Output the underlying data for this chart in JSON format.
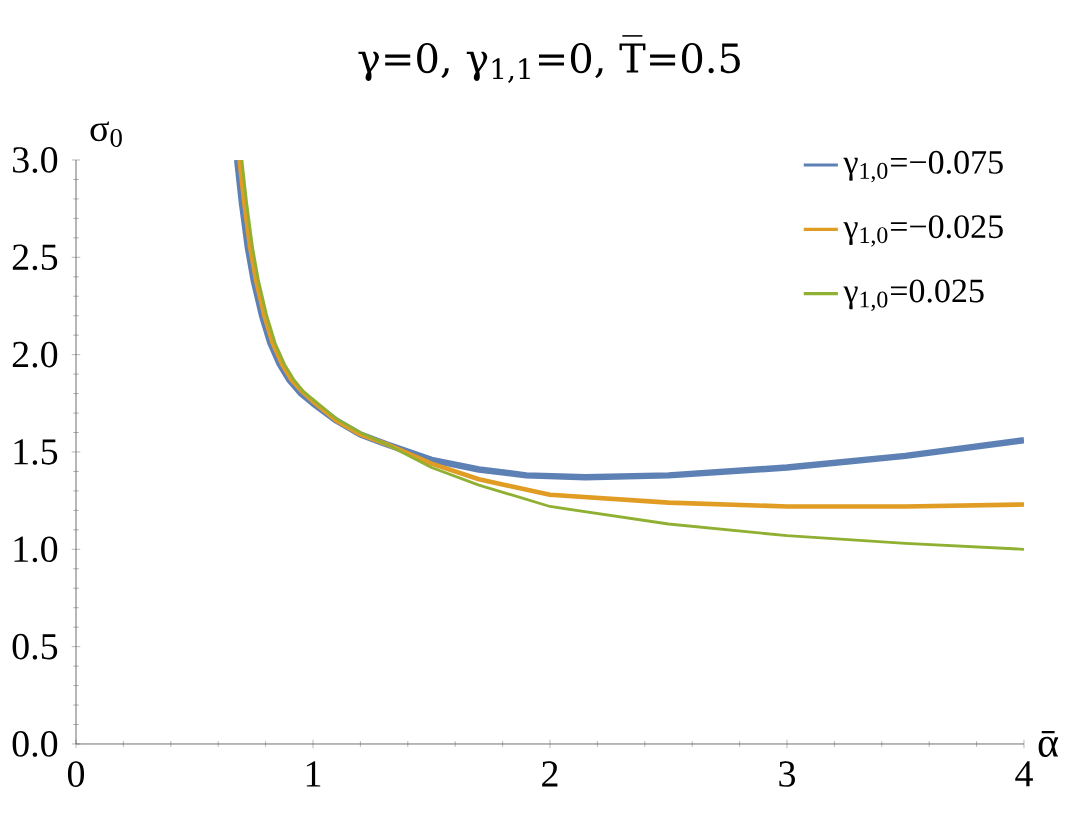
{
  "chart_data": {
    "type": "line",
    "title": "γ=0, γ$_{1,1}$=0, T̅=0.5",
    "xlabel": "ᾱ",
    "ylabel": "σ$_{0}$",
    "xlim": [
      0,
      4
    ],
    "ylim": [
      0,
      3.0
    ],
    "xticks": [
      0,
      1,
      2,
      3,
      4
    ],
    "yticks": [
      {
        "value": 0,
        "label": "0.0"
      },
      {
        "value": 0.5,
        "label": "0.5"
      },
      {
        "value": 1,
        "label": "1.0"
      },
      {
        "value": 1.5,
        "label": "1.5"
      },
      {
        "value": 2,
        "label": "2.0"
      },
      {
        "value": 2.5,
        "label": "2.5"
      },
      {
        "value": 3,
        "label": "3.0"
      }
    ],
    "legend": "top right",
    "marker": "none",
    "line_style": "solid",
    "series": [
      {
        "name": "γ$_{1,0}$=−0.075",
        "color": "#5e81b5",
        "x": [
          0.68,
          0.7,
          0.725,
          0.75,
          0.785,
          0.82,
          0.86,
          0.9,
          0.95,
          1.0,
          1.1,
          1.2,
          1.31,
          1.5,
          1.7,
          1.9,
          2.15,
          2.5,
          3.0,
          3.5,
          4.0
        ],
        "values": [
          3.0,
          2.78,
          2.55,
          2.38,
          2.2,
          2.06,
          1.95,
          1.87,
          1.8,
          1.75,
          1.66,
          1.59,
          1.54,
          1.46,
          1.41,
          1.38,
          1.37,
          1.38,
          1.42,
          1.48,
          1.56
        ]
      },
      {
        "name": "γ$_{1,0}$=−0.025",
        "color": "#e19c24",
        "x": [
          0.69,
          0.71,
          0.735,
          0.76,
          0.795,
          0.83,
          0.87,
          0.91,
          0.955,
          1.0,
          1.1,
          1.2,
          1.31,
          1.5,
          1.7,
          2.0,
          2.5,
          3.0,
          3.5,
          4.0
        ],
        "values": [
          3.0,
          2.78,
          2.55,
          2.38,
          2.2,
          2.06,
          1.95,
          1.87,
          1.81,
          1.76,
          1.66,
          1.59,
          1.54,
          1.44,
          1.36,
          1.28,
          1.24,
          1.22,
          1.22,
          1.23
        ]
      },
      {
        "name": "γ$_{1,0}$=0.025",
        "color": "#8fb032",
        "x": [
          0.7,
          0.72,
          0.745,
          0.77,
          0.805,
          0.84,
          0.88,
          0.92,
          0.96,
          1.0,
          1.1,
          1.2,
          1.31,
          1.5,
          1.7,
          2.0,
          2.5,
          3.0,
          3.5,
          4.0
        ],
        "values": [
          3.0,
          2.78,
          2.55,
          2.38,
          2.2,
          2.06,
          1.95,
          1.87,
          1.81,
          1.77,
          1.67,
          1.6,
          1.54,
          1.42,
          1.33,
          1.22,
          1.13,
          1.07,
          1.03,
          1.0
        ]
      }
    ]
  }
}
